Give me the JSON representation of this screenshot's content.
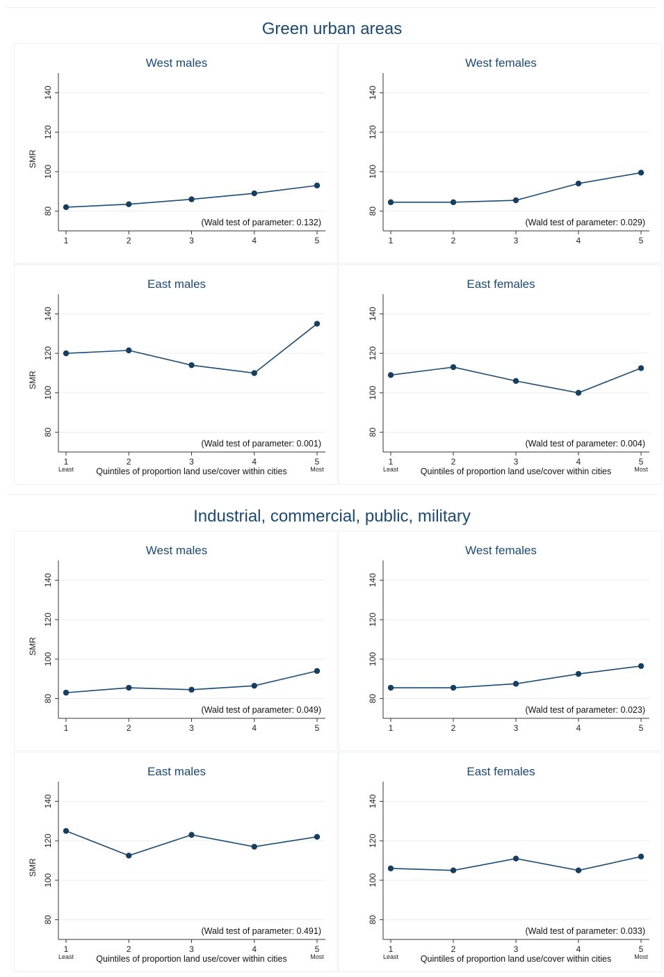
{
  "colors": {
    "title": "#1a4a72",
    "line": "#1a4a72",
    "marker": "#163e60",
    "grid": "#eaeef1",
    "axis": "#333333"
  },
  "chart_data": [
    {
      "type": "line",
      "title": "Green urban areas",
      "panels": [
        {
          "title": "West males",
          "ylabel": "SMR",
          "xlabel": "",
          "x": [
            1,
            2,
            3,
            4,
            5
          ],
          "y": [
            82,
            83.5,
            86,
            89,
            93
          ],
          "note": "(Wald test of parameter: 0.132)",
          "yticks": [
            80,
            100,
            120,
            140
          ],
          "ylim": [
            70,
            150
          ],
          "xticks": [
            "1",
            "2",
            "3",
            "4",
            "5"
          ],
          "x_end_labels": [
            "",
            ""
          ]
        },
        {
          "title": "West females",
          "ylabel": "",
          "xlabel": "",
          "x": [
            1,
            2,
            3,
            4,
            5
          ],
          "y": [
            84.5,
            84.5,
            85.5,
            94,
            99.5
          ],
          "note": "(Wald test of parameter: 0.029)",
          "yticks": [
            80,
            100,
            120,
            140
          ],
          "ylim": [
            70,
            150
          ],
          "xticks": [
            "1",
            "2",
            "3",
            "4",
            "5"
          ],
          "x_end_labels": [
            "",
            ""
          ]
        },
        {
          "title": "East males",
          "ylabel": "SMR",
          "xlabel": "Quintiles of proportion land use/cover within cities",
          "x": [
            1,
            2,
            3,
            4,
            5
          ],
          "y": [
            120,
            121.5,
            114,
            110,
            135
          ],
          "note": "(Wald test of parameter: 0.001)",
          "yticks": [
            80,
            100,
            120,
            140
          ],
          "ylim": [
            70,
            150
          ],
          "xticks": [
            "1",
            "2",
            "3",
            "4",
            "5"
          ],
          "x_end_labels": [
            "Least",
            "Most"
          ]
        },
        {
          "title": "East females",
          "ylabel": "",
          "xlabel": "Quintiles of proportion land use/cover within cities",
          "x": [
            1,
            2,
            3,
            4,
            5
          ],
          "y": [
            109,
            113,
            106,
            100,
            112.5
          ],
          "note": "(Wald test of parameter: 0.004)",
          "yticks": [
            80,
            100,
            120,
            140
          ],
          "ylim": [
            70,
            150
          ],
          "xticks": [
            "1",
            "2",
            "3",
            "4",
            "5"
          ],
          "x_end_labels": [
            "Least",
            "Most"
          ]
        }
      ]
    },
    {
      "type": "line",
      "title": "Industrial, commercial, public, military",
      "panels": [
        {
          "title": "West males",
          "ylabel": "SMR",
          "xlabel": "",
          "x": [
            1,
            2,
            3,
            4,
            5
          ],
          "y": [
            83,
            85.5,
            84.5,
            86.5,
            94
          ],
          "note": "(Wald test of parameter: 0.049)",
          "yticks": [
            80,
            100,
            120,
            140
          ],
          "ylim": [
            70,
            150
          ],
          "xticks": [
            "1",
            "2",
            "3",
            "4",
            "5"
          ],
          "x_end_labels": [
            "",
            ""
          ]
        },
        {
          "title": "West females",
          "ylabel": "",
          "xlabel": "",
          "x": [
            1,
            2,
            3,
            4,
            5
          ],
          "y": [
            85.5,
            85.5,
            87.5,
            92.5,
            96.5
          ],
          "note": "(Wald test of parameter: 0.023)",
          "yticks": [
            80,
            100,
            120,
            140
          ],
          "ylim": [
            70,
            150
          ],
          "xticks": [
            "1",
            "2",
            "3",
            "4",
            "5"
          ],
          "x_end_labels": [
            "",
            ""
          ]
        },
        {
          "title": "East males",
          "ylabel": "SMR",
          "xlabel": "Quintiles of proportion land use/cover within cities",
          "x": [
            1,
            2,
            3,
            4,
            5
          ],
          "y": [
            125,
            112.5,
            123,
            117,
            122
          ],
          "note": "(Wald test of parameter: 0.491)",
          "yticks": [
            80,
            100,
            120,
            140
          ],
          "ylim": [
            70,
            150
          ],
          "xticks": [
            "1",
            "2",
            "3",
            "4",
            "5"
          ],
          "x_end_labels": [
            "Least",
            "Most"
          ]
        },
        {
          "title": "East females",
          "ylabel": "",
          "xlabel": "Quintiles of proportion land use/cover within cities",
          "x": [
            1,
            2,
            3,
            4,
            5
          ],
          "y": [
            106,
            105,
            111,
            105,
            112
          ],
          "note": "(Wald test of parameter: 0.033)",
          "yticks": [
            80,
            100,
            120,
            140
          ],
          "ylim": [
            70,
            150
          ],
          "xticks": [
            "1",
            "2",
            "3",
            "4",
            "5"
          ],
          "x_end_labels": [
            "Least",
            "Most"
          ]
        }
      ]
    }
  ]
}
